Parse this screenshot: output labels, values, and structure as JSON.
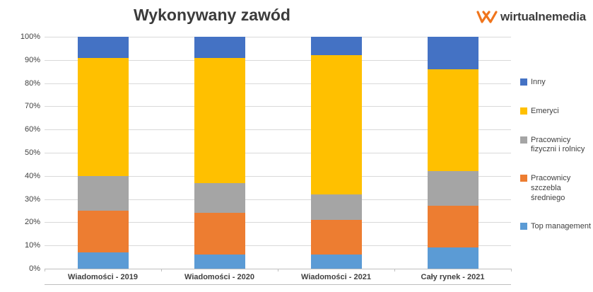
{
  "header": {
    "title": "Wykonywany zawód",
    "logo_text": "wirtualnemedia"
  },
  "colors": {
    "logo_orange": "#F0751D",
    "title_text": "#3b3b3b",
    "axis_text": "#404040",
    "gridline": "#d9d9d9"
  },
  "chart_data": {
    "type": "bar",
    "subtype": "stacked-100-percent",
    "title": "Wykonywany zawód",
    "categories": [
      "Wiadomości - 2019",
      "Wiadomości - 2020",
      "Wiadomości - 2021",
      "Cały rynek - 2021"
    ],
    "series": [
      {
        "name": "Top management",
        "color": "#5B9BD5",
        "values": [
          7,
          6,
          6,
          9
        ]
      },
      {
        "name": "Pracownicy szczebla średniego",
        "color": "#ED7D31",
        "values": [
          18,
          18,
          15,
          18
        ]
      },
      {
        "name": "Pracownicy fizyczni i rolnicy",
        "color": "#A5A5A5",
        "values": [
          15,
          13,
          11,
          15
        ]
      },
      {
        "name": "Emeryci",
        "color": "#FFC000",
        "values": [
          51,
          54,
          60,
          44
        ]
      },
      {
        "name": "Inny",
        "color": "#4472C4",
        "values": [
          9,
          9,
          8,
          14
        ]
      }
    ],
    "legend": [
      "Inny",
      "Emeryci",
      "Pracownicy fizyczni i rolnicy",
      "Pracownicy szczebla średniego",
      "Top management"
    ],
    "legend_position": "right",
    "xlabel": "",
    "ylabel": "",
    "ylim": [
      0,
      100
    ],
    "ytick_step": 10,
    "ytick_format": "percent",
    "grid": true
  }
}
